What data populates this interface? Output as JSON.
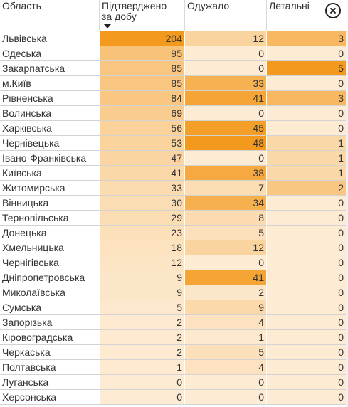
{
  "chart_data": {
    "type": "table",
    "columns": [
      "Область",
      "Підтверджено за добу",
      "Одужало",
      "Летальні"
    ],
    "rows": [
      {
        "region": "Львівська",
        "confirmed": 204,
        "recovered": 12,
        "deaths": 3
      },
      {
        "region": "Одеська",
        "confirmed": 95,
        "recovered": 0,
        "deaths": 0
      },
      {
        "region": "Закарпатська",
        "confirmed": 85,
        "recovered": 0,
        "deaths": 5
      },
      {
        "region": "м.Київ",
        "confirmed": 85,
        "recovered": 33,
        "deaths": 0
      },
      {
        "region": "Рівненська",
        "confirmed": 84,
        "recovered": 41,
        "deaths": 3
      },
      {
        "region": "Волинська",
        "confirmed": 69,
        "recovered": 0,
        "deaths": 0
      },
      {
        "region": "Харківська",
        "confirmed": 56,
        "recovered": 45,
        "deaths": 0
      },
      {
        "region": "Чернівецька",
        "confirmed": 53,
        "recovered": 48,
        "deaths": 1
      },
      {
        "region": "Івано-Франківська",
        "confirmed": 47,
        "recovered": 0,
        "deaths": 1
      },
      {
        "region": "Київська",
        "confirmed": 41,
        "recovered": 38,
        "deaths": 1
      },
      {
        "region": "Житомирська",
        "confirmed": 33,
        "recovered": 7,
        "deaths": 2
      },
      {
        "region": "Вінницька",
        "confirmed": 30,
        "recovered": 34,
        "deaths": 0
      },
      {
        "region": "Тернопільська",
        "confirmed": 29,
        "recovered": 8,
        "deaths": 0
      },
      {
        "region": "Донецька",
        "confirmed": 23,
        "recovered": 5,
        "deaths": 0
      },
      {
        "region": "Хмельницька",
        "confirmed": 18,
        "recovered": 12,
        "deaths": 0
      },
      {
        "region": "Чернігівська",
        "confirmed": 12,
        "recovered": 0,
        "deaths": 0
      },
      {
        "region": "Дніпропетровська",
        "confirmed": 9,
        "recovered": 41,
        "deaths": 0
      },
      {
        "region": "Миколаївська",
        "confirmed": 9,
        "recovered": 2,
        "deaths": 0
      },
      {
        "region": "Сумська",
        "confirmed": 5,
        "recovered": 9,
        "deaths": 0
      },
      {
        "region": "Запорізька",
        "confirmed": 2,
        "recovered": 4,
        "deaths": 0
      },
      {
        "region": "Кіровоградська",
        "confirmed": 2,
        "recovered": 1,
        "deaths": 0
      },
      {
        "region": "Черкаська",
        "confirmed": 2,
        "recovered": 5,
        "deaths": 0
      },
      {
        "region": "Полтавська",
        "confirmed": 1,
        "recovered": 4,
        "deaths": 0
      },
      {
        "region": "Луганська",
        "confirmed": 0,
        "recovered": 0,
        "deaths": 0
      },
      {
        "region": "Херсонська",
        "confirmed": 0,
        "recovered": 0,
        "deaths": 0
      }
    ],
    "sort": {
      "column": "Підтверджено за добу",
      "direction": "descending"
    },
    "heat_colors": {
      "low": "#fdebd3",
      "high": "#f39a1e"
    }
  }
}
